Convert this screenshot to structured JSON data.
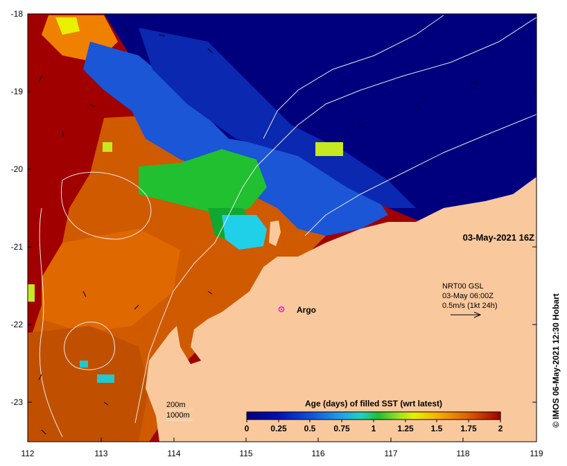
{
  "map": {
    "timestamp": "03-May-2021 16Z",
    "current_product": {
      "line1": "NRT00 GSL",
      "line2": "03-May 06:00Z",
      "line3": "0.5m/s (1kt 24h)"
    },
    "argo_label": "Argo",
    "credit": "© IMOS 06-May-2021 12:30 Hobart",
    "depth_contours": {
      "line1": "200m",
      "line2": "1000m"
    },
    "x_ticks": [
      "112",
      "113",
      "114",
      "115",
      "116",
      "117",
      "118",
      "119"
    ],
    "y_ticks": [
      "-18",
      "-19",
      "-20",
      "-21",
      "-22",
      "-23"
    ],
    "colorbar": {
      "title": "Age (days) of filled SST (wrt latest)",
      "ticks": [
        "0",
        "0.25",
        "0.5",
        "0.75",
        "1",
        "1.25",
        "1.5",
        "1.75",
        "2"
      ]
    }
  },
  "colors": {
    "land": "#f9c99d",
    "age_0": "#00007e",
    "age_0_5": "#1050d8",
    "age_0_75": "#20d0e8",
    "age_1": "#20c030",
    "age_1_25": "#e8f000",
    "age_1_5": "#f8b000",
    "age_1_75": "#e06000",
    "age_2": "#a00000",
    "argo": "#ff00ff"
  }
}
